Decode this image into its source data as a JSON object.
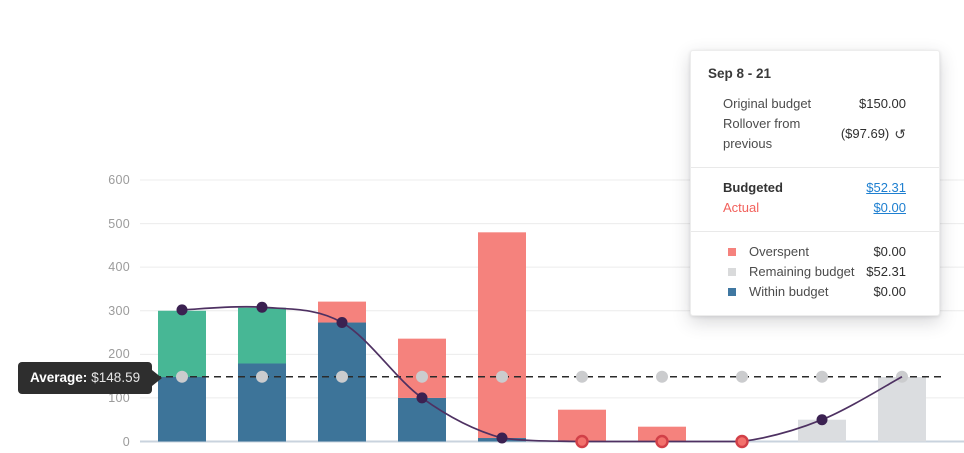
{
  "colors": {
    "teal": "#47B795",
    "blue": "#3D7499",
    "pink": "#F5827D",
    "gray_bar": "#DBDDE0",
    "line": "#4E3162",
    "dot_purple": "#3B2151",
    "dot_gray": "#CBCCCE",
    "dot_red_fill": "#F3716C",
    "dot_red_stroke": "#D24048",
    "grid": "#ECECEC",
    "zero_line": "#C9D3DE",
    "avg_line": "#2B2B2B",
    "link": "#1E7FD0",
    "actual_red": "#F2615C",
    "legend_blue": "#3F77A1",
    "legend_gray": "#D9DADB"
  },
  "average": {
    "label": "Average:",
    "value": "$148.59",
    "amount": 148.59
  },
  "chart_data": {
    "type": "bar",
    "n_periods": 10,
    "stack_order": [
      "within_budget",
      "teal_surplus",
      "overspent",
      "remaining"
    ],
    "series": [
      {
        "key": "within_budget",
        "name": "Within budget",
        "color_key": "blue",
        "values": [
          148,
          179,
          273,
          100,
          8,
          0,
          0,
          0,
          0,
          0
        ]
      },
      {
        "key": "teal_surplus",
        "name": "",
        "color_key": "teal",
        "values": [
          152,
          128,
          0,
          0,
          0,
          0,
          0,
          0,
          0,
          0
        ]
      },
      {
        "key": "overspent",
        "name": "Overspent",
        "color_key": "pink",
        "values": [
          0,
          0,
          48,
          136,
          472,
          73,
          34,
          0,
          0,
          0
        ]
      },
      {
        "key": "remaining",
        "name": "Remaining budget",
        "color_key": "gray_bar",
        "values": [
          0,
          0,
          0,
          0,
          0,
          0,
          0,
          0,
          50,
          148
        ]
      }
    ],
    "line": {
      "values": [
        302,
        308,
        273,
        100,
        8,
        0,
        0,
        0,
        50,
        148.59
      ],
      "dot_styles": [
        "purple",
        "purple",
        "purple",
        "purple",
        "purple",
        "red",
        "red",
        "red",
        "purple",
        "gray"
      ]
    },
    "average_value": 148.59,
    "y_ticks": [
      0,
      100,
      200,
      300,
      400,
      500,
      600
    ],
    "ylim": [
      0,
      620
    ],
    "grid": true,
    "xlabel": "",
    "ylabel": ""
  },
  "tooltip": {
    "title": "Sep 8 - 21",
    "rows": [
      {
        "label": "Original budget",
        "value": "$150.00"
      },
      {
        "label": "Rollover from previous",
        "value": "($97.69)",
        "icon": "rollover-undo-icon",
        "icon_glyph": "↺"
      }
    ],
    "budget_rows": [
      {
        "label": "Budgeted",
        "value": "$52.31"
      },
      {
        "label": "Actual",
        "value": "$0.00"
      }
    ],
    "legend": [
      {
        "label": "Overspent",
        "value": "$0.00",
        "swatch": "pink"
      },
      {
        "label": "Remaining budget",
        "value": "$52.31",
        "swatch": "legend_gray"
      },
      {
        "label": "Within budget",
        "value": "$0.00",
        "swatch": "legend_blue"
      }
    ]
  }
}
